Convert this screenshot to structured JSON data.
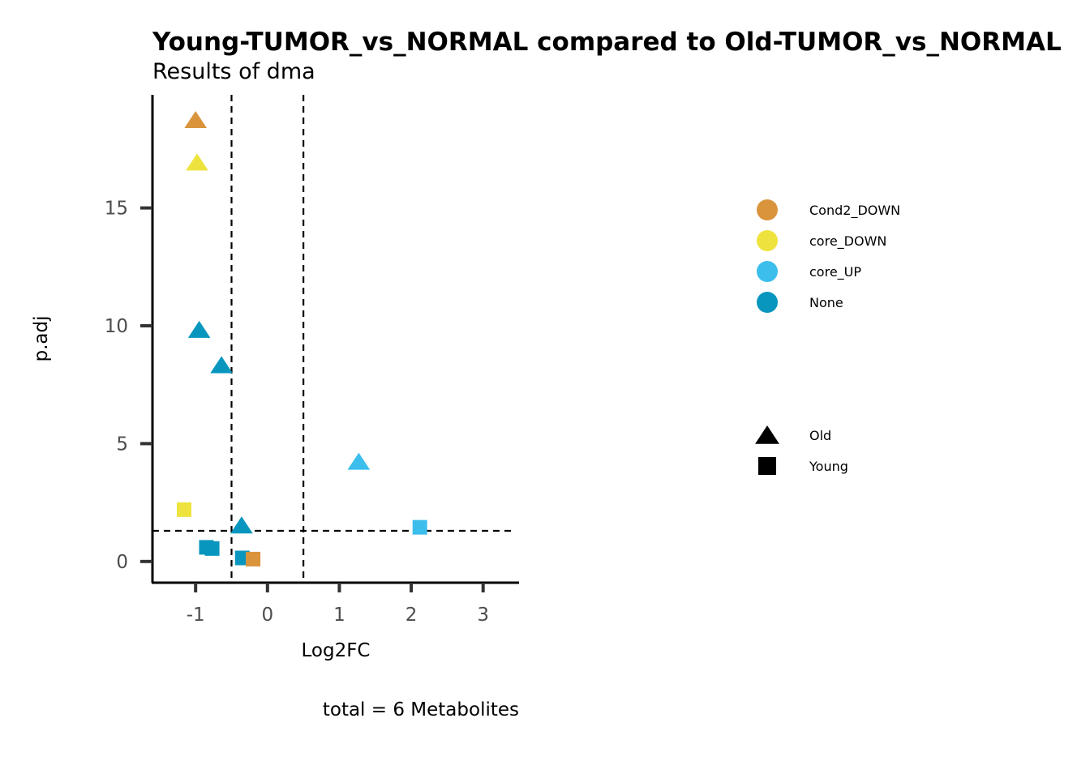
{
  "chart_data": {
    "type": "scatter",
    "title": "Young-TUMOR_vs_NORMAL compared to Old-TUMOR_vs_NORMAL",
    "subtitle": "Results of dma",
    "xlabel": "Log2FC",
    "ylabel": "p.adj",
    "caption": "total = 6 Metabolites",
    "xlim": [
      -1.6,
      3.5
    ],
    "ylim": [
      -0.9,
      19.8
    ],
    "x_ticks": [
      -1,
      0,
      1,
      2,
      3
    ],
    "x_tick_labels": [
      "-1",
      "0",
      "1",
      "2",
      "3"
    ],
    "y_ticks": [
      0,
      5,
      10,
      15
    ],
    "y_tick_labels": [
      "0",
      "5",
      "10",
      "15"
    ],
    "vlines": [
      -0.5,
      0.5
    ],
    "hlines": [
      1.3
    ],
    "grid": false,
    "legend_position": "right",
    "color_legend": [
      {
        "label": "Cond2_DOWN",
        "color": "#DA943C"
      },
      {
        "label": "core_DOWN",
        "color": "#EEE33E"
      },
      {
        "label": "core_UP",
        "color": "#3BBEEC"
      },
      {
        "label": "None",
        "color": "#0896BE"
      }
    ],
    "shape_legend": [
      {
        "label": "Old",
        "shape": "triangle"
      },
      {
        "label": "Young",
        "shape": "square"
      }
    ],
    "points": [
      {
        "x": -1.0,
        "y": 18.7,
        "group": "Cond2_DOWN",
        "shape": "triangle"
      },
      {
        "x": -0.98,
        "y": 16.9,
        "group": "core_DOWN",
        "shape": "triangle"
      },
      {
        "x": -0.95,
        "y": 9.8,
        "group": "None",
        "shape": "triangle"
      },
      {
        "x": -0.64,
        "y": 8.3,
        "group": "None",
        "shape": "triangle"
      },
      {
        "x": 1.27,
        "y": 4.2,
        "group": "core_UP",
        "shape": "triangle"
      },
      {
        "x": -0.36,
        "y": 1.5,
        "group": "None",
        "shape": "triangle"
      },
      {
        "x": -1.16,
        "y": 2.2,
        "group": "core_DOWN",
        "shape": "square"
      },
      {
        "x": 2.12,
        "y": 1.45,
        "group": "core_UP",
        "shape": "square"
      },
      {
        "x": -0.85,
        "y": 0.6,
        "group": "None",
        "shape": "square"
      },
      {
        "x": -0.77,
        "y": 0.55,
        "group": "None",
        "shape": "square"
      },
      {
        "x": -0.35,
        "y": 0.15,
        "group": "None",
        "shape": "square"
      },
      {
        "x": -0.2,
        "y": 0.1,
        "group": "Cond2_DOWN",
        "shape": "square"
      }
    ]
  }
}
